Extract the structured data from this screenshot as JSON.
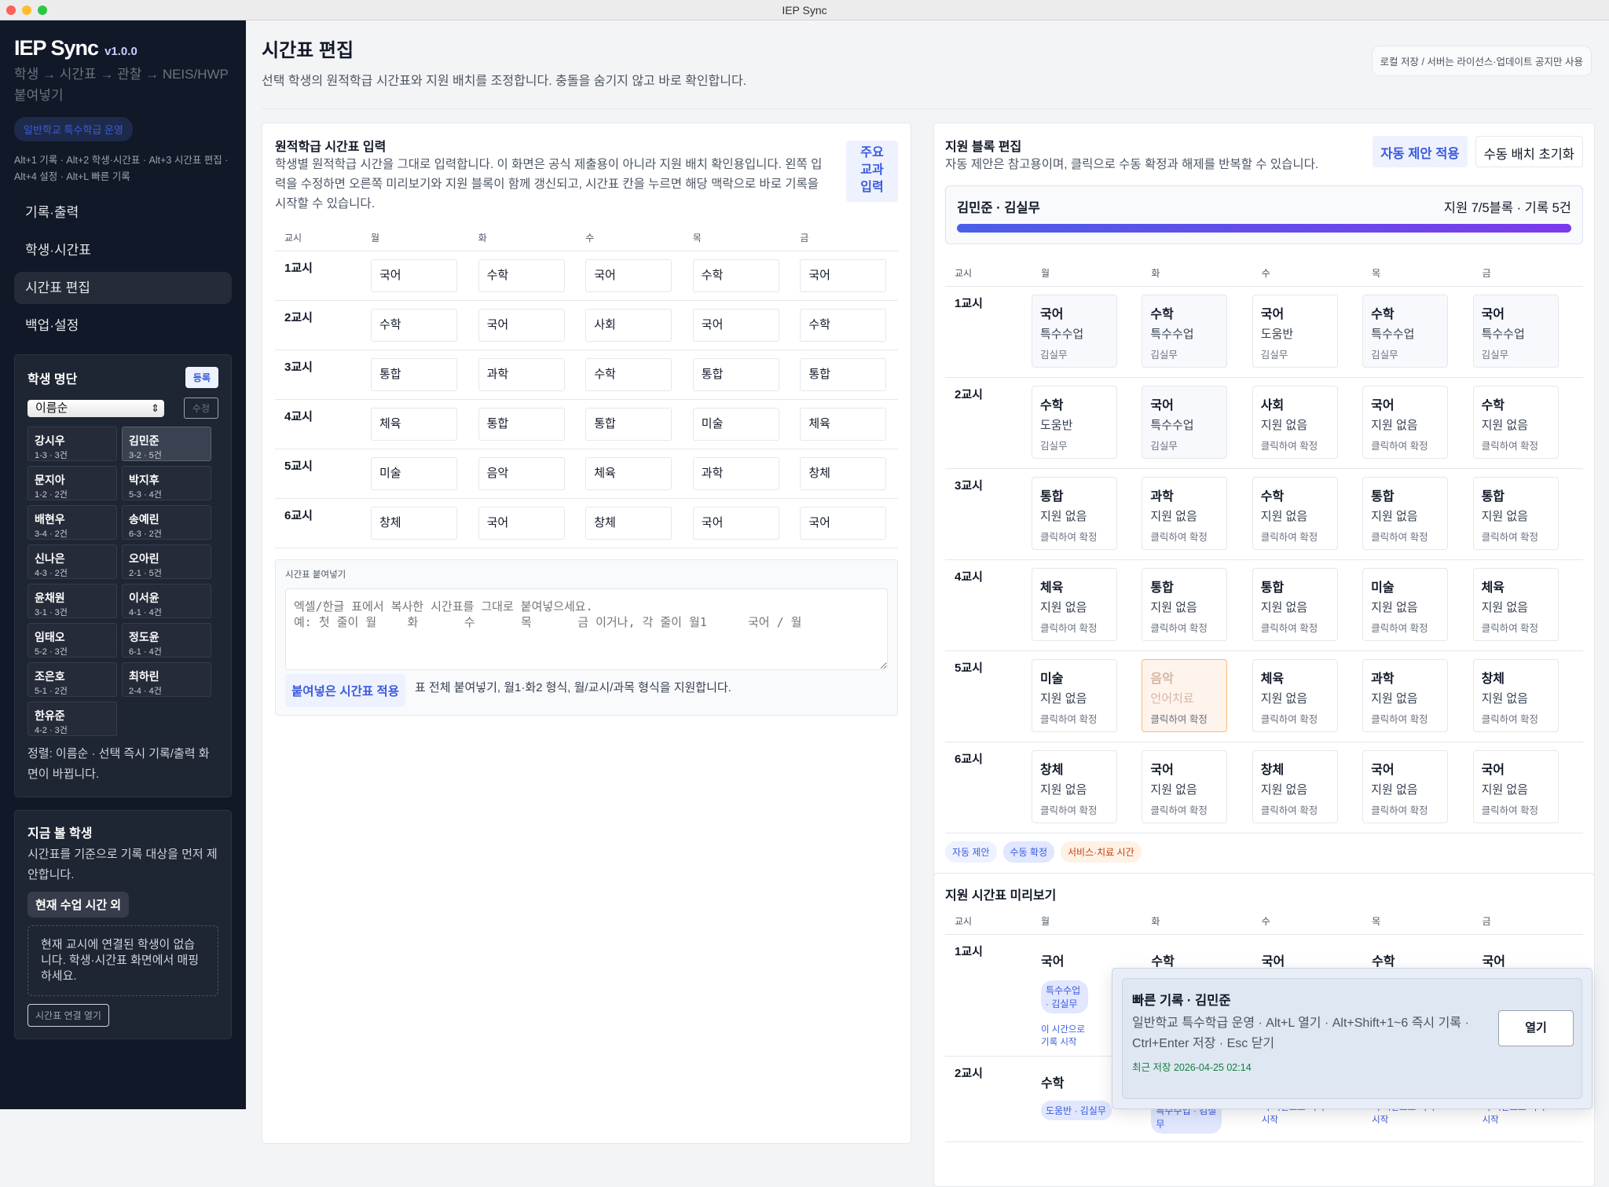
{
  "window_title": "IEP Sync",
  "sidebar": {
    "brand": "IEP Sync",
    "version": "v1.0.0",
    "tagline": "학생 → 시간표 → 관찰 → NEIS/HWP 붙여넣기",
    "mode": "일반학교 특수학급 운영",
    "shortcuts": "Alt+1 기록 · Alt+2 학생·시간표 · Alt+3 시간표 편집 · Alt+4 설정 · Alt+L 빠른 기록",
    "nav": [
      {
        "label": "기록·출력"
      },
      {
        "label": "학생·시간표"
      },
      {
        "label": "시간표 편집",
        "active": true
      },
      {
        "label": "백업·설정"
      }
    ],
    "roster": {
      "title": "학생 명단",
      "register": "등록",
      "sort": "이름순",
      "edit": "수정",
      "selected": "김민준",
      "students": [
        {
          "name": "강시우",
          "meta": "1-3 · 3건"
        },
        {
          "name": "김민준",
          "meta": "3-2 · 5건"
        },
        {
          "name": "문지아",
          "meta": "1-2 · 2건"
        },
        {
          "name": "박지후",
          "meta": "5-3 · 4건"
        },
        {
          "name": "배현우",
          "meta": "3-4 · 2건"
        },
        {
          "name": "송예린",
          "meta": "6-3 · 2건"
        },
        {
          "name": "신나은",
          "meta": "4-3 · 2건"
        },
        {
          "name": "오아린",
          "meta": "2-1 · 5건"
        },
        {
          "name": "윤채원",
          "meta": "3-1 · 3건"
        },
        {
          "name": "이서윤",
          "meta": "4-1 · 4건"
        },
        {
          "name": "임태오",
          "meta": "5-2 · 3건"
        },
        {
          "name": "정도윤",
          "meta": "6-1 · 4건"
        },
        {
          "name": "조은호",
          "meta": "5-1 · 2건"
        },
        {
          "name": "최하린",
          "meta": "2-4 · 4건"
        },
        {
          "name": "한유준",
          "meta": "4-2 · 3건"
        }
      ],
      "note": "정렬: 이름순 · 선택 즉시 기록/출력 화면이 바뀝니다."
    },
    "now": {
      "title": "지금 볼 학생",
      "desc": "시간표를 기준으로 기록 대상을 먼저 제안합니다.",
      "badge": "현재 수업 시간 외",
      "empty": "현재 교시에 연결된 학생이 없습니다. 학생·시간표 화면에서 매핑하세요.",
      "link": "시간표 연결 열기"
    }
  },
  "header": {
    "title": "시간표 편집",
    "subtitle": "선택 학생의 원적학급 시간표와 지원 배치를 조정합니다. 충돌을 숨기지 않고 바로 확인합니다.",
    "storage": "로컬 저장 / 서버는 라이선스·업데이트 공지만 사용"
  },
  "days": [
    "월",
    "화",
    "수",
    "목",
    "금"
  ],
  "period_header": "교시",
  "periods": [
    "1교시",
    "2교시",
    "3교시",
    "4교시",
    "5교시",
    "6교시"
  ],
  "home": {
    "title": "원적학급 시간표 입력",
    "desc": "학생별 원적학급 시간을 그대로 입력합니다. 이 화면은 공식 제출용이 아니라 지원 배치 확인용입니다. 왼쪽 입력을 수정하면 오른쪽 미리보기와 지원 블록이 함께 갱신되고, 시간표 칸을 누르면 해당 맥락으로 바로 기록을 시작할 수 있습니다.",
    "main_subject_btn": "주요 교과 입력",
    "grid": [
      [
        "국어",
        "수학",
        "국어",
        "수학",
        "국어"
      ],
      [
        "수학",
        "국어",
        "사회",
        "국어",
        "수학"
      ],
      [
        "통합",
        "과학",
        "수학",
        "통합",
        "통합"
      ],
      [
        "체육",
        "통합",
        "통합",
        "미술",
        "체육"
      ],
      [
        "미술",
        "음악",
        "체육",
        "과학",
        "창체"
      ],
      [
        "창체",
        "국어",
        "창체",
        "국어",
        "국어"
      ]
    ],
    "paste": {
      "label": "시간표 붙여넣기",
      "placeholder": "엑셀/한글 표에서 복사한 시간표를 그대로 붙여넣으세요.\n예: 첫 줄이 월\t화\t수\t목\t금 이거나, 각 줄이 월1\t국어 / 월",
      "apply": "붙여넣은 시간표 적용",
      "hint": "표 전체 붙여넣기, 월1·화2 형식, 월/교시/과목 형식을 지원합니다."
    }
  },
  "support": {
    "title": "지원 블록 편집",
    "desc": "자동 제안은 참고용이며, 클릭으로 수동 확정과 해제를 반복할 수 있습니다.",
    "auto_btn": "자동 제안 적용",
    "reset_btn": "수동 배치 초기화",
    "summary": {
      "label": "김민준 · 김실무",
      "stats": "지원 7/5블록 · 기록 5건",
      "progress": 1.0
    },
    "none": "지원 없음",
    "click": "클릭하여 확정",
    "blocks": [
      [
        {
          "t": "특수수업",
          "s": "김실무",
          "k": "man"
        },
        {
          "t": "특수수업",
          "s": "김실무",
          "k": "man"
        },
        {
          "t": "도움반",
          "s": "김실무",
          "k": "auto"
        },
        {
          "t": "특수수업",
          "s": "김실무",
          "k": "man"
        },
        {
          "t": "특수수업",
          "s": "김실무",
          "k": "man"
        }
      ],
      [
        {
          "t": "도움반",
          "s": "김실무",
          "k": "auto"
        },
        {
          "t": "특수수업",
          "s": "김실무",
          "k": "man"
        },
        null,
        null,
        null
      ],
      [
        null,
        null,
        null,
        null,
        null
      ],
      [
        null,
        null,
        null,
        null,
        null
      ],
      [
        null,
        {
          "t": "언어치료",
          "s": "클릭하여 확정",
          "k": "svc"
        },
        null,
        null,
        null
      ],
      [
        null,
        null,
        null,
        null,
        null
      ]
    ],
    "legend": [
      {
        "label": "자동 제안",
        "color": "#3b5bdb",
        "bg": "#eef2ff"
      },
      {
        "label": "수동 확정",
        "color": "#3b5bdb",
        "bg": "#e0e7ff"
      },
      {
        "label": "서비스·치료 시간",
        "color": "#c2410c",
        "bg": "#fff1e6"
      }
    ]
  },
  "preview": {
    "title": "지원 시간표 미리보기",
    "row1_tag": "특수수업 · 김실무",
    "row1_link": "이 시간으로 기록 시작",
    "row2_tags": [
      "도움반 · 김실무",
      "특수수업 · 김실무"
    ],
    "row2_link": "이 시간으로 기록 시작"
  },
  "quick": {
    "title": "빠른 기록 · 김민준",
    "desc": "일반학교 특수학급 운영 · Alt+L 열기 · Alt+Shift+1~6 즉시 기록 · Ctrl+Enter 저장 · Esc 닫기",
    "saved": "최근 저장 2026-04-25 02:14",
    "open": "열기"
  },
  "colors": {
    "accent": "#3b5bdb",
    "sidebar": "#111827",
    "progress_start": "#4b5ee8",
    "progress_end": "#7c3aed",
    "saved": "#15803d"
  }
}
